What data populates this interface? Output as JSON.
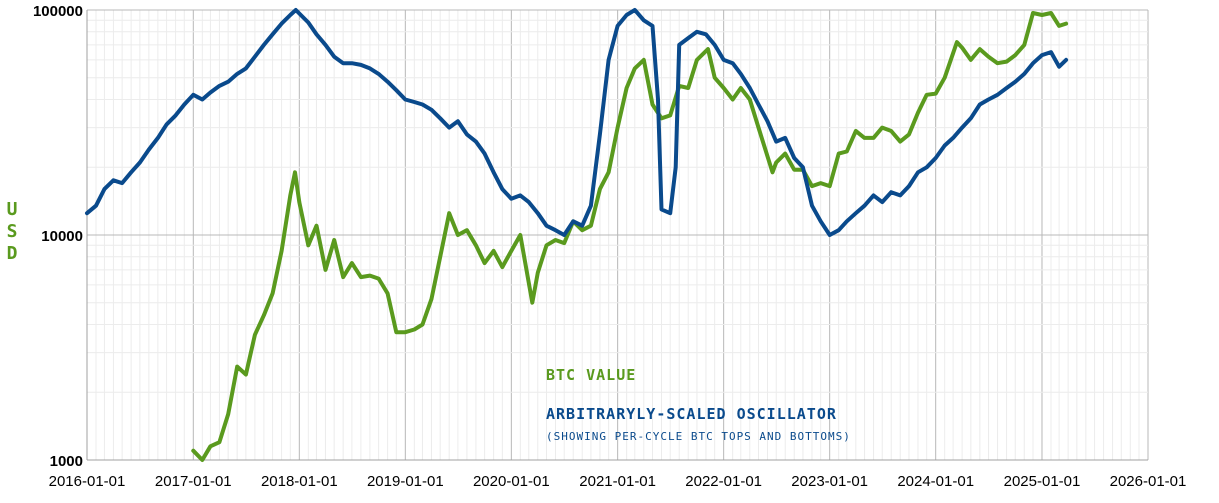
{
  "chart_data": {
    "type": "line",
    "ylabel": "USD",
    "yscale": "log",
    "ylim": [
      1000,
      100000
    ],
    "y_ticks": [
      "1000",
      "10000",
      "100000"
    ],
    "xlim": [
      "2016-01-01",
      "2026-01-01"
    ],
    "x_ticks": [
      "2016-01-01",
      "2017-01-01",
      "2018-01-01",
      "2019-01-01",
      "2020-01-01",
      "2021-01-01",
      "2022-01-01",
      "2023-01-01",
      "2024-01-01",
      "2025-01-01",
      "2026-01-01"
    ],
    "grid": true,
    "legend_placement": "lower-middle",
    "series": [
      {
        "name": "BTC VALUE",
        "color": "#5a9a1e",
        "points": [
          [
            "2017-01-01",
            1100
          ],
          [
            "2017-02-01",
            1000
          ],
          [
            "2017-03-01",
            1150
          ],
          [
            "2017-04-01",
            1200
          ],
          [
            "2017-05-01",
            1600
          ],
          [
            "2017-06-01",
            2600
          ],
          [
            "2017-07-01",
            2400
          ],
          [
            "2017-08-01",
            3600
          ],
          [
            "2017-09-01",
            4400
          ],
          [
            "2017-10-01",
            5500
          ],
          [
            "2017-11-01",
            8500
          ],
          [
            "2017-12-01",
            15000
          ],
          [
            "2017-12-17",
            19000
          ],
          [
            "2018-01-01",
            14000
          ],
          [
            "2018-02-01",
            9000
          ],
          [
            "2018-03-01",
            11000
          ],
          [
            "2018-04-01",
            7000
          ],
          [
            "2018-05-01",
            9500
          ],
          [
            "2018-06-01",
            6500
          ],
          [
            "2018-07-01",
            7500
          ],
          [
            "2018-08-01",
            6500
          ],
          [
            "2018-09-01",
            6600
          ],
          [
            "2018-10-01",
            6400
          ],
          [
            "2018-11-01",
            5500
          ],
          [
            "2018-12-01",
            3700
          ],
          [
            "2019-01-01",
            3700
          ],
          [
            "2019-02-01",
            3800
          ],
          [
            "2019-03-01",
            4000
          ],
          [
            "2019-04-01",
            5200
          ],
          [
            "2019-05-01",
            8000
          ],
          [
            "2019-06-01",
            12500
          ],
          [
            "2019-07-01",
            10000
          ],
          [
            "2019-08-01",
            10500
          ],
          [
            "2019-09-01",
            9000
          ],
          [
            "2019-10-01",
            7500
          ],
          [
            "2019-11-01",
            8500
          ],
          [
            "2019-12-01",
            7200
          ],
          [
            "2020-01-01",
            8500
          ],
          [
            "2020-02-01",
            10000
          ],
          [
            "2020-03-13",
            5000
          ],
          [
            "2020-04-01",
            6800
          ],
          [
            "2020-05-01",
            9000
          ],
          [
            "2020-06-01",
            9500
          ],
          [
            "2020-07-01",
            9200
          ],
          [
            "2020-08-01",
            11500
          ],
          [
            "2020-09-01",
            10500
          ],
          [
            "2020-10-01",
            11000
          ],
          [
            "2020-11-01",
            16000
          ],
          [
            "2020-12-01",
            19000
          ],
          [
            "2021-01-01",
            30000
          ],
          [
            "2021-02-01",
            45000
          ],
          [
            "2021-03-01",
            55000
          ],
          [
            "2021-04-01",
            60000
          ],
          [
            "2021-05-01",
            38000
          ],
          [
            "2021-06-01",
            33000
          ],
          [
            "2021-07-01",
            34000
          ],
          [
            "2021-08-01",
            46000
          ],
          [
            "2021-09-01",
            45000
          ],
          [
            "2021-10-01",
            60000
          ],
          [
            "2021-11-08",
            67000
          ],
          [
            "2021-12-01",
            50000
          ],
          [
            "2022-01-01",
            45000
          ],
          [
            "2022-02-01",
            40000
          ],
          [
            "2022-03-01",
            45000
          ],
          [
            "2022-04-01",
            40000
          ],
          [
            "2022-05-01",
            30000
          ],
          [
            "2022-06-18",
            19000
          ],
          [
            "2022-07-01",
            21000
          ],
          [
            "2022-08-01",
            23000
          ],
          [
            "2022-09-01",
            19500
          ],
          [
            "2022-10-01",
            19500
          ],
          [
            "2022-11-01",
            16500
          ],
          [
            "2022-12-01",
            17000
          ],
          [
            "2023-01-01",
            16500
          ],
          [
            "2023-02-01",
            23000
          ],
          [
            "2023-03-01",
            23500
          ],
          [
            "2023-04-01",
            29000
          ],
          [
            "2023-05-01",
            27000
          ],
          [
            "2023-06-01",
            27000
          ],
          [
            "2023-07-01",
            30000
          ],
          [
            "2023-08-01",
            29000
          ],
          [
            "2023-09-01",
            26000
          ],
          [
            "2023-10-01",
            28000
          ],
          [
            "2023-11-01",
            35000
          ],
          [
            "2023-12-01",
            42000
          ],
          [
            "2024-01-01",
            42500
          ],
          [
            "2024-02-01",
            50000
          ],
          [
            "2024-03-14",
            72000
          ],
          [
            "2024-04-01",
            68000
          ],
          [
            "2024-05-01",
            60000
          ],
          [
            "2024-06-01",
            67000
          ],
          [
            "2024-07-01",
            62000
          ],
          [
            "2024-08-01",
            58000
          ],
          [
            "2024-09-01",
            59000
          ],
          [
            "2024-10-01",
            63000
          ],
          [
            "2024-11-01",
            70000
          ],
          [
            "2024-12-01",
            97000
          ],
          [
            "2025-01-01",
            95000
          ],
          [
            "2025-02-01",
            97000
          ],
          [
            "2025-03-01",
            85000
          ],
          [
            "2025-03-25",
            87000
          ]
        ]
      },
      {
        "name": "ARBITRARYLY-SCALED OSCILLATOR",
        "color": "#0a4a8c",
        "points": [
          [
            "2016-01-01",
            12500
          ],
          [
            "2016-02-01",
            13500
          ],
          [
            "2016-03-01",
            16000
          ],
          [
            "2016-04-01",
            17500
          ],
          [
            "2016-05-01",
            17000
          ],
          [
            "2016-06-01",
            19000
          ],
          [
            "2016-07-01",
            21000
          ],
          [
            "2016-08-01",
            24000
          ],
          [
            "2016-09-01",
            27000
          ],
          [
            "2016-10-01",
            31000
          ],
          [
            "2016-11-01",
            34000
          ],
          [
            "2016-12-01",
            38000
          ],
          [
            "2017-01-01",
            42000
          ],
          [
            "2017-02-01",
            40000
          ],
          [
            "2017-03-01",
            43000
          ],
          [
            "2017-04-01",
            46000
          ],
          [
            "2017-05-01",
            48000
          ],
          [
            "2017-06-01",
            52000
          ],
          [
            "2017-07-01",
            55000
          ],
          [
            "2017-08-01",
            62000
          ],
          [
            "2017-09-01",
            70000
          ],
          [
            "2017-10-01",
            78000
          ],
          [
            "2017-11-01",
            87000
          ],
          [
            "2017-12-01",
            95000
          ],
          [
            "2017-12-20",
            100000
          ],
          [
            "2018-02-01",
            88000
          ],
          [
            "2018-03-01",
            78000
          ],
          [
            "2018-04-01",
            70000
          ],
          [
            "2018-05-01",
            62000
          ],
          [
            "2018-06-01",
            58000
          ],
          [
            "2018-07-01",
            58000
          ],
          [
            "2018-08-01",
            57000
          ],
          [
            "2018-09-01",
            55000
          ],
          [
            "2018-10-01",
            52000
          ],
          [
            "2018-11-01",
            48000
          ],
          [
            "2018-12-01",
            44000
          ],
          [
            "2019-01-01",
            40000
          ],
          [
            "2019-02-01",
            39000
          ],
          [
            "2019-03-01",
            38000
          ],
          [
            "2019-04-01",
            36000
          ],
          [
            "2019-05-01",
            33000
          ],
          [
            "2019-06-01",
            30000
          ],
          [
            "2019-07-01",
            32000
          ],
          [
            "2019-08-01",
            28000
          ],
          [
            "2019-09-01",
            26000
          ],
          [
            "2019-10-01",
            23000
          ],
          [
            "2019-11-01",
            19000
          ],
          [
            "2019-12-01",
            16000
          ],
          [
            "2020-01-01",
            14500
          ],
          [
            "2020-02-01",
            15000
          ],
          [
            "2020-03-01",
            14000
          ],
          [
            "2020-04-01",
            12500
          ],
          [
            "2020-05-01",
            11000
          ],
          [
            "2020-06-01",
            10500
          ],
          [
            "2020-07-01",
            10000
          ],
          [
            "2020-08-01",
            11500
          ],
          [
            "2020-09-01",
            11000
          ],
          [
            "2020-10-01",
            13500
          ],
          [
            "2020-11-01",
            28000
          ],
          [
            "2020-12-01",
            60000
          ],
          [
            "2021-01-01",
            85000
          ],
          [
            "2021-02-01",
            95000
          ],
          [
            "2021-03-01",
            100000
          ],
          [
            "2021-04-01",
            90000
          ],
          [
            "2021-05-01",
            85000
          ],
          [
            "2021-05-20",
            40000
          ],
          [
            "2021-06-01",
            13000
          ],
          [
            "2021-07-01",
            12500
          ],
          [
            "2021-07-20",
            20000
          ],
          [
            "2021-08-01",
            70000
          ],
          [
            "2021-09-01",
            75000
          ],
          [
            "2021-10-01",
            80000
          ],
          [
            "2021-11-01",
            78000
          ],
          [
            "2021-12-01",
            70000
          ],
          [
            "2022-01-01",
            60000
          ],
          [
            "2022-02-01",
            58000
          ],
          [
            "2022-03-01",
            52000
          ],
          [
            "2022-04-01",
            45000
          ],
          [
            "2022-05-01",
            38000
          ],
          [
            "2022-06-01",
            32000
          ],
          [
            "2022-07-01",
            26000
          ],
          [
            "2022-08-01",
            27000
          ],
          [
            "2022-09-01",
            22000
          ],
          [
            "2022-10-01",
            20000
          ],
          [
            "2022-11-01",
            13500
          ],
          [
            "2022-12-01",
            11500
          ],
          [
            "2023-01-01",
            10000
          ],
          [
            "2023-02-01",
            10500
          ],
          [
            "2023-03-01",
            11500
          ],
          [
            "2023-04-01",
            12500
          ],
          [
            "2023-05-01",
            13500
          ],
          [
            "2023-06-01",
            15000
          ],
          [
            "2023-07-01",
            14000
          ],
          [
            "2023-08-01",
            15500
          ],
          [
            "2023-09-01",
            15000
          ],
          [
            "2023-10-01",
            16500
          ],
          [
            "2023-11-01",
            19000
          ],
          [
            "2023-12-01",
            20000
          ],
          [
            "2024-01-01",
            22000
          ],
          [
            "2024-02-01",
            25000
          ],
          [
            "2024-03-01",
            27000
          ],
          [
            "2024-04-01",
            30000
          ],
          [
            "2024-05-01",
            33000
          ],
          [
            "2024-06-01",
            38000
          ],
          [
            "2024-07-01",
            40000
          ],
          [
            "2024-08-01",
            42000
          ],
          [
            "2024-09-01",
            45000
          ],
          [
            "2024-10-01",
            48000
          ],
          [
            "2024-11-01",
            52000
          ],
          [
            "2024-12-01",
            58000
          ],
          [
            "2025-01-01",
            63000
          ],
          [
            "2025-02-01",
            65000
          ],
          [
            "2025-03-01",
            56000
          ],
          [
            "2025-03-25",
            60000
          ]
        ]
      }
    ],
    "legend": {
      "btc_label": "BTC VALUE",
      "osc_label": "ARBITRARYLY-SCALED OSCILLATOR",
      "osc_sub": "(SHOWING PER-CYCLE BTC TOPS AND BOTTOMS)"
    }
  }
}
